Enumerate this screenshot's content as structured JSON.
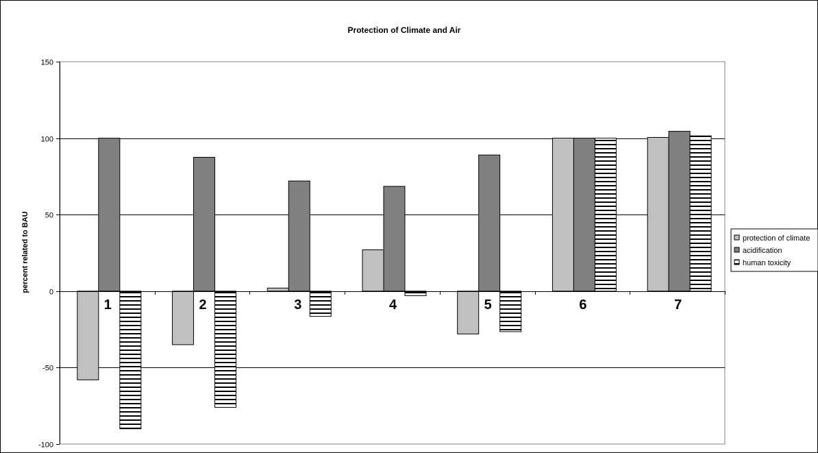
{
  "chart_data": {
    "type": "bar",
    "title": "Protection of Climate and Air",
    "xlabel": "",
    "ylabel": "percent related to BAU",
    "ylim": [
      -100,
      150
    ],
    "yticks": [
      150,
      100,
      50,
      0,
      -50,
      -100
    ],
    "grid": true,
    "legend_position": "right",
    "categories": [
      "1",
      "2",
      "3",
      "4",
      "5",
      "6",
      "7"
    ],
    "series": [
      {
        "name": "protection of climate",
        "fill": "#c0c0c0",
        "pattern": "solid",
        "values": [
          -58,
          -35,
          2,
          27,
          -28,
          100,
          100.5
        ]
      },
      {
        "name": "acidification",
        "fill": "#808080",
        "pattern": "solid",
        "values": [
          100,
          87.5,
          72,
          68.5,
          89,
          100,
          104.5
        ]
      },
      {
        "name": "human toxicity",
        "fill": "#ffffff",
        "pattern": "horizontal-lines",
        "values": [
          -90,
          -76,
          -16.5,
          -3,
          -26.5,
          100,
          101.5
        ]
      }
    ]
  }
}
